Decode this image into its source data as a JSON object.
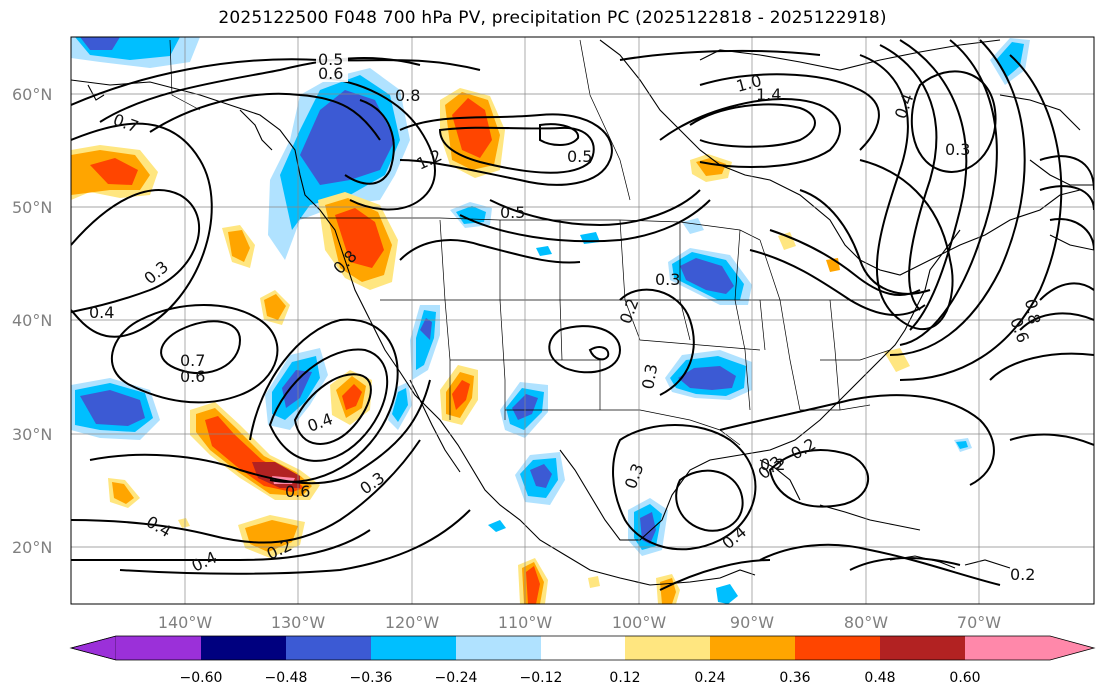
{
  "title": "2025122500 F048 700 hPa PV, precipitation PC (2025122818 - 2025122918)",
  "map": {
    "lat_labels": [
      "60°N",
      "50°N",
      "40°N",
      "30°N",
      "20°N"
    ],
    "lon_labels": [
      "140°W",
      "130°W",
      "120°W",
      "110°W",
      "100°W",
      "90°W",
      "80°W",
      "70°W"
    ],
    "contour_labels": [
      "0.5",
      "0.6",
      "0.8",
      "0.7",
      "1.0",
      "1.4",
      "1.2",
      "0.5",
      "0.5",
      "0.3",
      "0.4",
      "0.7",
      "0.6",
      "0.4",
      "0.3",
      "0.2",
      "0.3",
      "0.6",
      "0.4",
      "0.3",
      "0.2",
      "0.3",
      "0.4",
      "0.2",
      "0.4",
      "0.2",
      "0.3",
      "0.8",
      "0.3",
      "0.2",
      "0.8",
      "0.6",
      "0.4"
    ]
  },
  "colorbar": {
    "ticks": [
      "−0.60",
      "−0.48",
      "−0.36",
      "−0.24",
      "−0.12",
      "0.12",
      "0.24",
      "0.36",
      "0.48",
      "0.60"
    ],
    "colors": [
      "#9b30d9",
      "#00007f",
      "#3c5ad4",
      "#00bfff",
      "#b0e2ff",
      "#ffffff",
      "#ffe680",
      "#ffa500",
      "#ff4500",
      "#b22222",
      "#ff88aa"
    ]
  }
}
